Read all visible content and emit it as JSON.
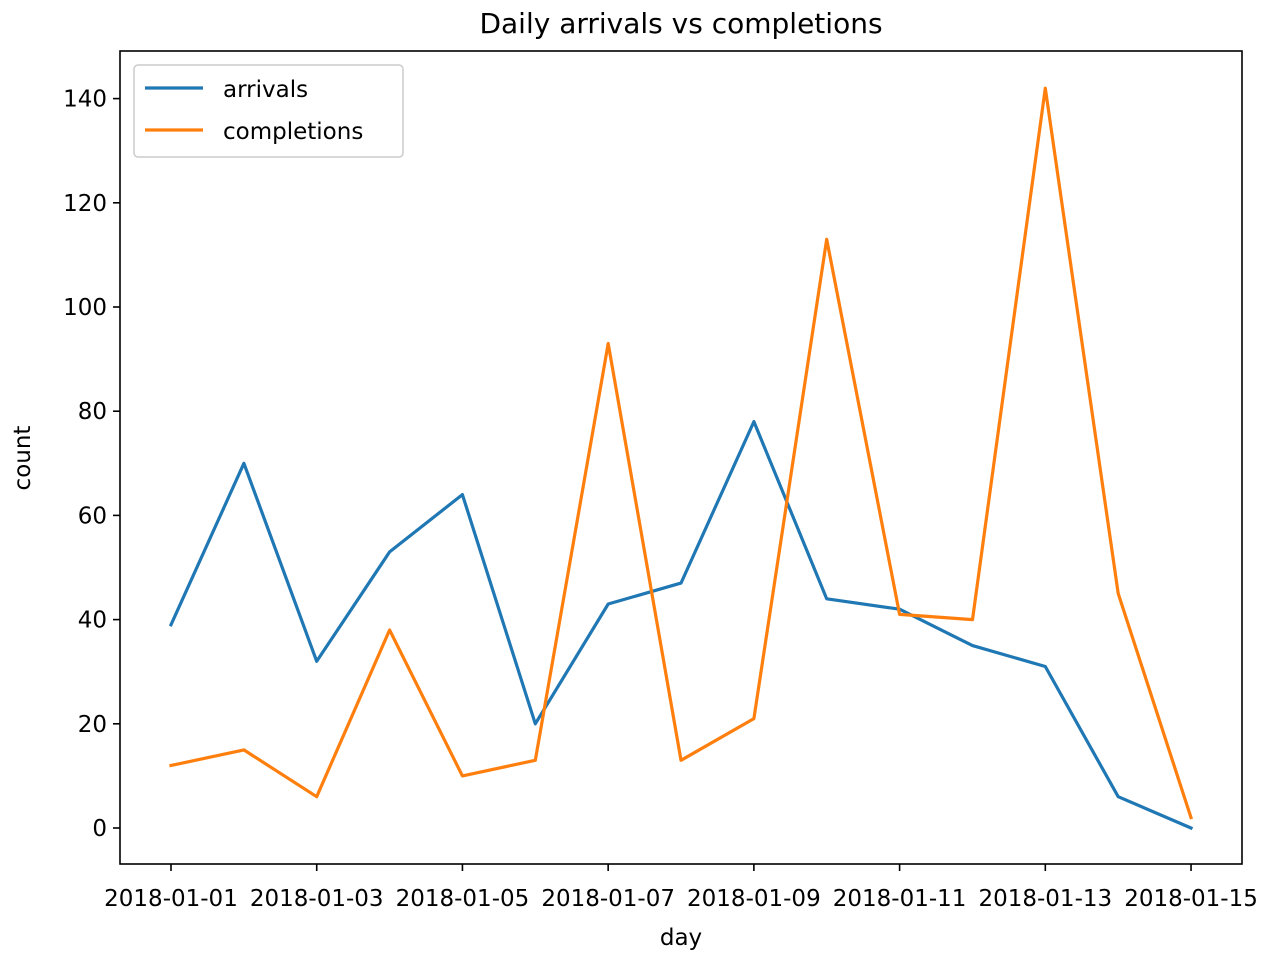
{
  "chart_data": {
    "type": "line",
    "title": "Daily arrivals vs completions",
    "xlabel": "day",
    "ylabel": "count",
    "x": [
      "2018-01-01",
      "2018-01-02",
      "2018-01-03",
      "2018-01-04",
      "2018-01-05",
      "2018-01-06",
      "2018-01-07",
      "2018-01-08",
      "2018-01-09",
      "2018-01-10",
      "2018-01-11",
      "2018-01-12",
      "2018-01-13",
      "2018-01-14",
      "2018-01-15"
    ],
    "x_ticks": [
      "2018-01-01",
      "2018-01-03",
      "2018-01-05",
      "2018-01-07",
      "2018-01-09",
      "2018-01-11",
      "2018-01-13",
      "2018-01-15"
    ],
    "y_ticks": [
      0,
      20,
      40,
      60,
      80,
      100,
      120,
      140
    ],
    "ylim": [
      -7,
      149
    ],
    "grid": false,
    "legend_position": "top-left",
    "series": [
      {
        "name": "arrivals",
        "color": "#1f77b4",
        "values": [
          39,
          70,
          32,
          53,
          64,
          20,
          43,
          47,
          78,
          44,
          42,
          35,
          31,
          6,
          0
        ]
      },
      {
        "name": "completions",
        "color": "#ff7f0e",
        "values": [
          12,
          15,
          6,
          38,
          10,
          13,
          93,
          13,
          21,
          113,
          41,
          40,
          142,
          45,
          2
        ]
      }
    ]
  }
}
